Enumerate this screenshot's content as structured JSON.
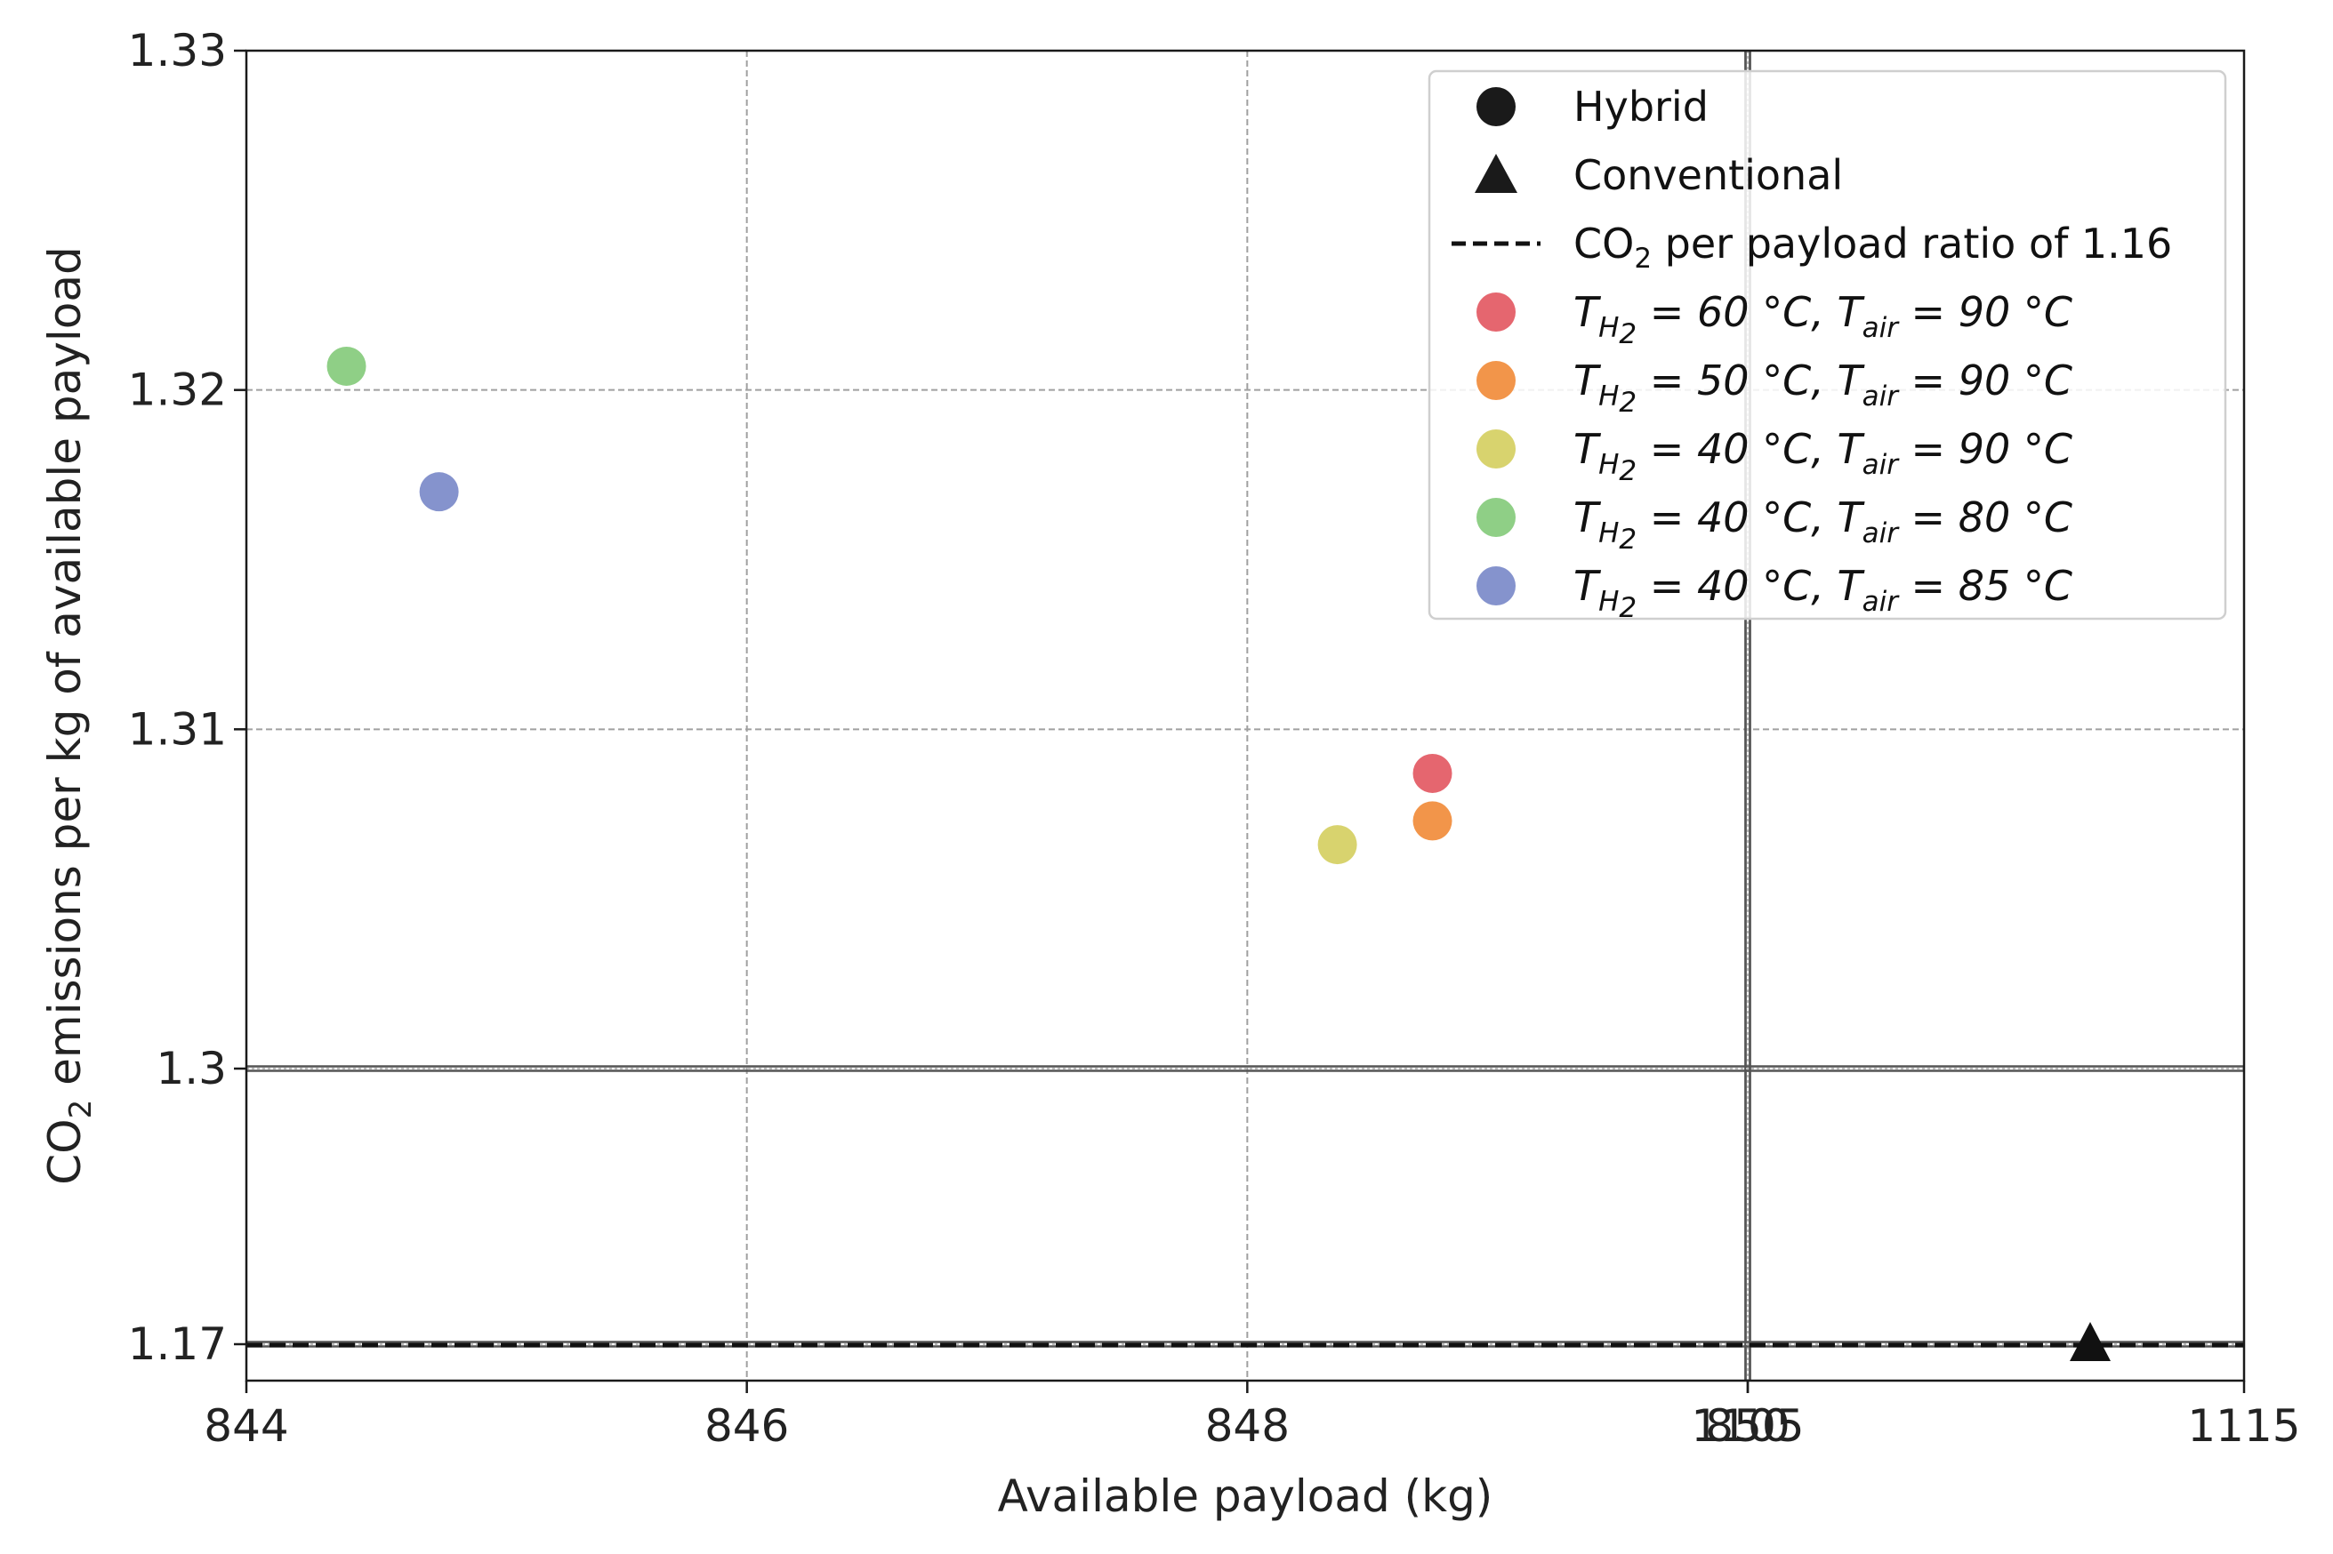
{
  "chart_data": {
    "type": "scatter",
    "xlabel": "Available payload (kg)",
    "ylabel": "CO₂ emissions per kg of available payload",
    "x_ticks": [
      "844",
      "846",
      "848",
      "850",
      "1105",
      "1115"
    ],
    "y_ticks": [
      "1.17",
      "1.3",
      "1.31",
      "1.32",
      "1.33"
    ],
    "x_segments": [
      {
        "range": [
          844,
          850
        ],
        "broken_axis": false
      },
      {
        "range": [
          1105,
          1115
        ],
        "broken_axis": true
      }
    ],
    "y_segments": [
      {
        "range": [
          1.3,
          1.33
        ]
      },
      {
        "range": [
          1.17,
          1.3
        ],
        "broken_axis": true
      }
    ],
    "grid": true,
    "legend_position": "top-right",
    "legend": {
      "hybrid": "Hybrid",
      "conventional": "Conventional",
      "ratio_line_label_prefix": "CO",
      "ratio_line_label_sub": "2",
      "ratio_line_label_suffix": " per payload ratio of 1.16",
      "series_labels": [
        {
          "t_h2": "60 °C",
          "t_air": "90 °C"
        },
        {
          "t_h2": "50 °C",
          "t_air": "90 °C"
        },
        {
          "t_h2": "40 °C",
          "t_air": "90 °C"
        },
        {
          "t_h2": "40 °C",
          "t_air": "80 °C"
        },
        {
          "t_h2": "40 °C",
          "t_air": "85 °C"
        }
      ],
      "symbol_T": "T",
      "symbol_H": "H",
      "symbol_H_sub": "2",
      "symbol_air": "air",
      "eq": " = ",
      "sep": ", "
    },
    "reference_line": {
      "name": "CO2 per payload ratio of 1.16",
      "y": 1.16,
      "style": "dashed"
    },
    "series": [
      {
        "name": "T_H2 = 60 °C, T_air = 90 °C",
        "kind": "hybrid",
        "color": "#e5666f",
        "x": 848.74,
        "y": 1.3087
      },
      {
        "name": "T_H2 = 50 °C, T_air = 90 °C",
        "kind": "hybrid",
        "color": "#f2954a",
        "x": 848.74,
        "y": 1.3073
      },
      {
        "name": "T_H2 = 40 °C, T_air = 90 °C",
        "kind": "hybrid",
        "color": "#d8d36e",
        "x": 848.36,
        "y": 1.3066
      },
      {
        "name": "T_H2 = 40 °C, T_air = 80 °C",
        "kind": "hybrid",
        "color": "#8fcf86",
        "x": 844.4,
        "y": 1.3207
      },
      {
        "name": "T_H2 = 40 °C, T_air = 85 °C",
        "kind": "hybrid",
        "color": "#8593cd",
        "x": 844.77,
        "y": 1.317
      },
      {
        "name": "Conventional",
        "kind": "conventional",
        "color": "#111111",
        "x": 1111.9,
        "y": 1.16
      }
    ]
  }
}
